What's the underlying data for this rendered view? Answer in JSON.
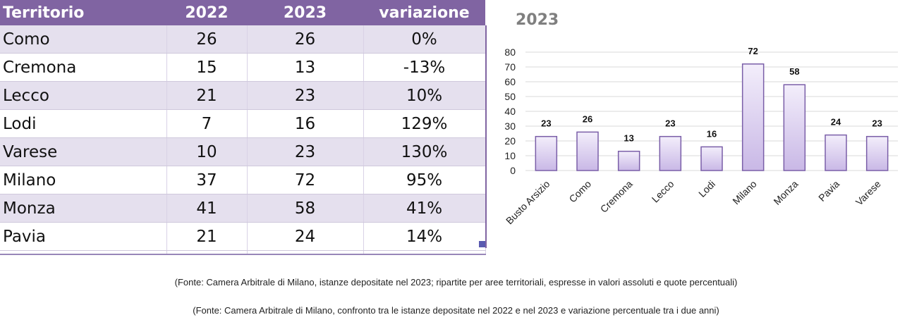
{
  "table": {
    "headers": [
      "Territorio",
      "2022",
      "2023",
      "variazione"
    ],
    "rows": [
      [
        "Como",
        "26",
        "26",
        "0%"
      ],
      [
        "Cremona",
        "15",
        "13",
        "-13%"
      ],
      [
        "Lecco",
        "21",
        "23",
        "10%"
      ],
      [
        "Lodi",
        "7",
        "16",
        "129%"
      ],
      [
        "Varese",
        "10",
        "23",
        "130%"
      ],
      [
        "Milano",
        "37",
        "72",
        "95%"
      ],
      [
        "Monza",
        "41",
        "58",
        "41%"
      ],
      [
        "Pavia",
        "21",
        "24",
        "14%"
      ]
    ]
  },
  "chart_data": {
    "type": "bar",
    "title": "2023",
    "categories": [
      "Busto Arsizio",
      "Como",
      "Cremona",
      "Lecco",
      "Lodi",
      "Milano",
      "Monza",
      "Pavia",
      "Varese"
    ],
    "values": [
      23,
      26,
      13,
      23,
      16,
      72,
      58,
      24,
      23
    ],
    "ylim": [
      0,
      80
    ],
    "yticks": [
      0,
      10,
      20,
      30,
      40,
      50,
      60,
      70,
      80
    ],
    "grid": true,
    "data_labels": true,
    "bar_fill_top": "#f3eefb",
    "bar_fill_bottom": "#c9b8e6",
    "bar_stroke": "#7a5ea8"
  },
  "captions": {
    "chart_source": "(Fonte: Camera Arbitrale di Milano, istanze depositate nel 2023; ripartite per aree territoriali, espresse in valori assoluti e quote percentuali)",
    "table_source": "(Fonte: Camera Arbitrale di Milano, confronto tra le istanze depositate nel 2022 e nel 2023 e variazione percentuale tra i due anni)"
  }
}
